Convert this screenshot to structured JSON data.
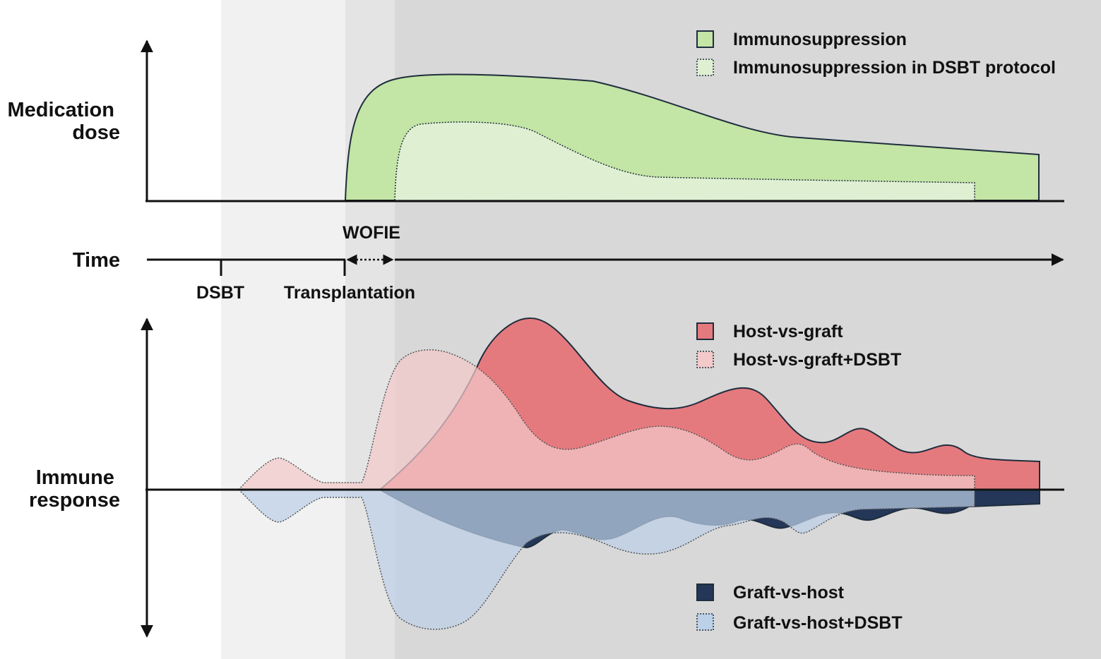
{
  "axes": {
    "medication": {
      "label_line1": "Medication",
      "label_line2": "dose"
    },
    "time": {
      "label": "Time",
      "ticks": [
        "DSBT",
        "Transplantation"
      ],
      "window_label": "WOFIE"
    },
    "immune": {
      "label_line1": "Immune",
      "label_line2": "response"
    }
  },
  "legend_medication": [
    {
      "label": "Immunosuppression",
      "color": "#c3e5a5",
      "style": "solid"
    },
    {
      "label": "Immunosuppression in DSBT protocol",
      "color": "#dff0d2",
      "style": "dotted"
    }
  ],
  "legend_hvg": [
    {
      "label": "Host-vs-graft",
      "color": "#e57a7e",
      "style": "solid"
    },
    {
      "label": "Host-vs-graft+DSBT",
      "color": "#f3c9ca",
      "style": "dotted"
    }
  ],
  "legend_gvh": [
    {
      "label": "Graft-vs-host",
      "color": "#243758",
      "style": "solid"
    },
    {
      "label": "Graft-vs-host+DSBT",
      "color": "#bcd0e8",
      "style": "dotted"
    }
  ],
  "phase_colors": {
    "pre": "#f1f1f1",
    "wofie": "#e4e4e4",
    "post": "#d8d8d8"
  }
}
